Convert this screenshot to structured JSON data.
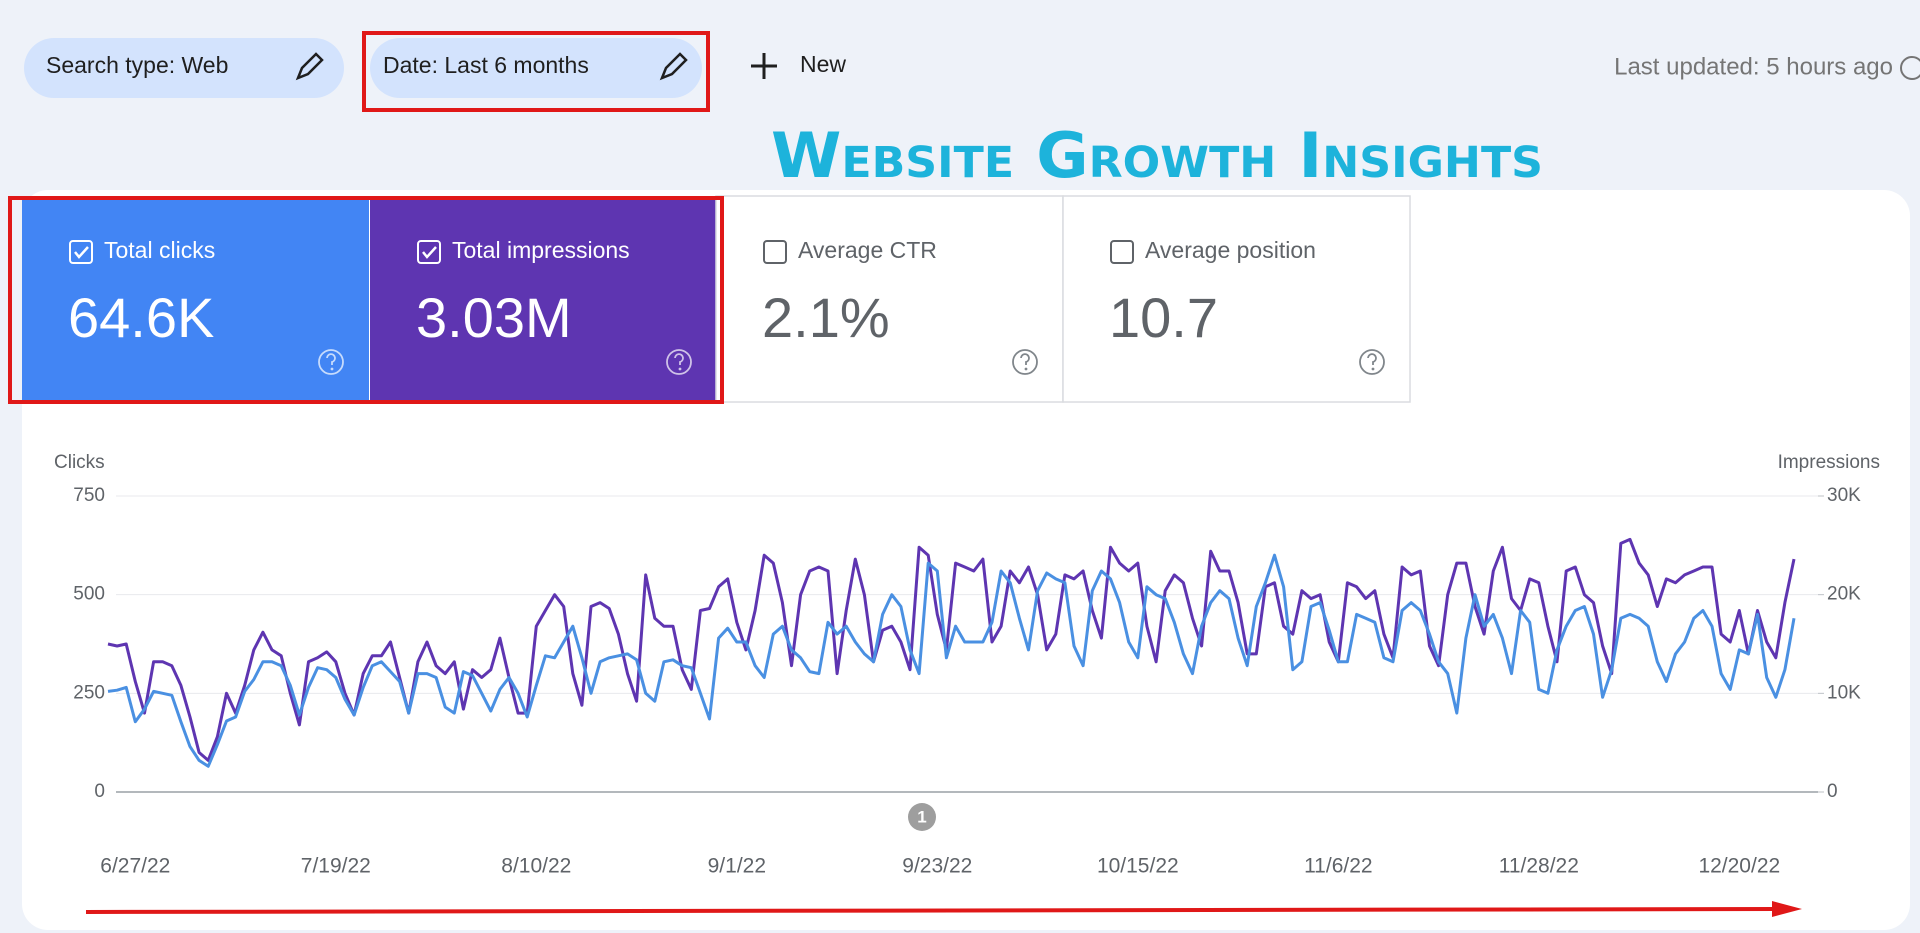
{
  "filters": {
    "search_type": "Search type: Web",
    "date": "Date: Last 6 months",
    "new": "New"
  },
  "last_updated": "Last updated: 5 hours ago",
  "metrics": [
    {
      "label": "Total clicks",
      "value": "64.6K",
      "selected": true,
      "color": "#4285f4"
    },
    {
      "label": "Total impressions",
      "value": "3.03M",
      "selected": true,
      "color": "#5e35b1"
    },
    {
      "label": "Average CTR",
      "value": "2.1%",
      "selected": false,
      "color": "#ffffff"
    },
    {
      "label": "Average position",
      "value": "10.7",
      "selected": false,
      "color": "#ffffff"
    }
  ],
  "chart_data": {
    "type": "line",
    "title": "Website Growth Insights",
    "categories": [
      null,
      null,
      null,
      "6/27/22",
      null,
      null,
      null,
      null,
      null,
      null,
      null,
      null,
      null,
      null,
      null,
      null,
      null,
      null,
      null,
      null,
      null,
      null,
      null,
      null,
      null,
      "7/19/22",
      null,
      null,
      null,
      null,
      null,
      null,
      null,
      null,
      null,
      null,
      null,
      null,
      null,
      null,
      null,
      null,
      null,
      null,
      null,
      null,
      null,
      "8/10/22",
      null,
      null,
      null,
      null,
      null,
      null,
      null,
      null,
      null,
      null,
      null,
      null,
      null,
      null,
      null,
      null,
      null,
      null,
      null,
      null,
      null,
      "9/1/22",
      null,
      null,
      null,
      null,
      null,
      null,
      null,
      null,
      null,
      null,
      null,
      null,
      null,
      null,
      null,
      null,
      null,
      null,
      null,
      null,
      null,
      "9/23/22",
      null,
      null,
      null,
      null,
      null,
      null,
      null,
      null,
      null,
      null,
      null,
      null,
      null,
      null,
      null,
      null,
      null,
      null,
      null,
      null,
      null,
      "10/15/22",
      null,
      null,
      null,
      null,
      null,
      null,
      null,
      null,
      null,
      null,
      null,
      null,
      null,
      null,
      null,
      null,
      null,
      null,
      null,
      null,
      null,
      "11/6/22",
      null,
      null,
      null,
      null,
      null,
      null,
      null,
      null,
      null,
      null,
      null,
      null,
      null,
      null,
      null,
      null,
      null,
      null,
      null,
      null,
      null,
      "11/28/22",
      null,
      null,
      null,
      null,
      null,
      null,
      null,
      null,
      null,
      null,
      null,
      null,
      null,
      null,
      null,
      null,
      null,
      null,
      null,
      null,
      null,
      "12/20/22",
      null,
      null,
      null,
      null,
      null,
      null
    ],
    "series": [
      {
        "name": "Clicks",
        "color": "#4a90e2",
        "values": [
          255,
          258,
          265,
          178,
          210,
          255,
          250,
          245,
          178,
          115,
          80,
          65,
          120,
          180,
          190,
          255,
          285,
          330,
          330,
          320,
          270,
          195,
          265,
          315,
          310,
          290,
          235,
          195,
          265,
          320,
          330,
          305,
          280,
          200,
          300,
          300,
          290,
          215,
          200,
          305,
          295,
          250,
          205,
          260,
          290,
          250,
          190,
          270,
          345,
          340,
          380,
          420,
          340,
          250,
          330,
          340,
          345,
          350,
          335,
          250,
          230,
          330,
          335,
          320,
          315,
          250,
          185,
          390,
          415,
          380,
          380,
          320,
          290,
          400,
          420,
          360,
          340,
          305,
          300,
          430,
          400,
          420,
          380,
          350,
          330,
          450,
          500,
          470,
          360,
          300,
          580,
          560,
          340,
          420,
          380,
          380,
          380,
          430,
          560,
          530,
          440,
          360,
          510,
          555,
          540,
          530,
          370,
          320,
          510,
          560,
          540,
          480,
          380,
          340,
          520,
          500,
          490,
          430,
          350,
          300,
          420,
          480,
          510,
          490,
          390,
          320,
          470,
          530,
          600,
          520,
          310,
          330,
          470,
          480,
          410,
          330,
          330,
          450,
          440,
          430,
          340,
          330,
          460,
          480,
          460,
          400,
          330,
          300,
          200,
          390,
          500,
          420,
          450,
          390,
          300,
          460,
          430,
          260,
          250,
          360,
          420,
          460,
          470,
          400,
          240,
          310,
          440,
          450,
          440,
          420,
          330,
          280,
          350,
          380,
          440,
          460,
          420,
          300,
          260,
          360,
          350,
          450,
          290,
          240,
          310,
          440
        ]
      },
      {
        "name": "Impressions",
        "color": "#5e35b1",
        "axis": "y2",
        "values": [
          15000,
          14800,
          15000,
          11200,
          8000,
          13200,
          13200,
          12800,
          10800,
          7600,
          4000,
          3200,
          5600,
          10000,
          8000,
          10800,
          14400,
          16200,
          14400,
          13800,
          10000,
          6800,
          13200,
          13600,
          14200,
          13200,
          10000,
          7800,
          12000,
          13800,
          13800,
          15200,
          11600,
          8000,
          13200,
          15200,
          12800,
          12000,
          13200,
          8400,
          12400,
          11600,
          12400,
          15600,
          11600,
          8000,
          8000,
          16800,
          18400,
          20000,
          18800,
          12000,
          8800,
          18800,
          19200,
          18600,
          16000,
          12000,
          9200,
          22000,
          17600,
          16800,
          16800,
          12400,
          10400,
          18400,
          18600,
          20800,
          21600,
          17200,
          14400,
          18400,
          24000,
          23200,
          19200,
          12800,
          20000,
          22400,
          22800,
          22400,
          12000,
          18400,
          23600,
          20000,
          13200,
          16400,
          16800,
          15200,
          12400,
          24800,
          24000,
          18000,
          14400,
          23200,
          22800,
          22400,
          23600,
          15200,
          16800,
          22400,
          21200,
          22800,
          20000,
          14400,
          16000,
          22000,
          21600,
          22400,
          18400,
          15600,
          24800,
          23200,
          22400,
          23200,
          16800,
          13200,
          20400,
          22000,
          21200,
          17600,
          14800,
          24400,
          22400,
          22400,
          19200,
          14000,
          14000,
          20800,
          21200,
          16800,
          16000,
          20400,
          19600,
          20000,
          15200,
          13200,
          21200,
          20800,
          19600,
          20400,
          16000,
          13600,
          22800,
          22000,
          22400,
          14800,
          12800,
          20000,
          23200,
          23200,
          18800,
          16000,
          22400,
          24800,
          19600,
          18400,
          21600,
          21200,
          16800,
          13200,
          22400,
          22800,
          20000,
          19200,
          14800,
          12000,
          25200,
          25600,
          23200,
          22000,
          18800,
          21600,
          21200,
          22000,
          22400,
          22800,
          22800,
          16000,
          15200,
          18400,
          14000,
          18400,
          15200,
          13600,
          19200,
          23600
        ]
      }
    ],
    "ylim": [
      0,
      750
    ],
    "yticks": [
      0,
      250,
      500,
      750
    ],
    "y2lim": [
      0,
      30000
    ],
    "y2ticks": [
      0,
      {
        "value": 10000,
        "label": "10K"
      },
      {
        "value": 20000,
        "label": "20K"
      },
      {
        "value": 30000,
        "label": "30K"
      }
    ],
    "grid": true,
    "annotations": [
      "1"
    ]
  }
}
